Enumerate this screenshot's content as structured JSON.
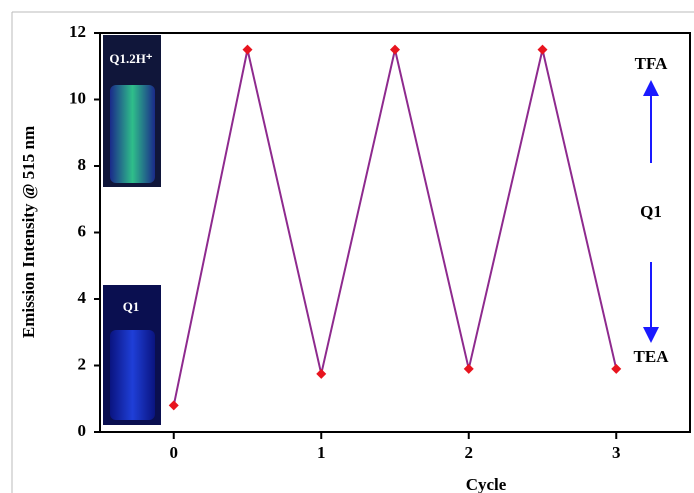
{
  "chart_data": {
    "type": "line",
    "x": [
      0,
      0.5,
      1,
      1.5,
      2,
      2.5,
      3
    ],
    "values": [
      0.8,
      11.5,
      1.75,
      11.5,
      1.9,
      11.5,
      1.9
    ],
    "color": "#8e2a8e",
    "marker_color": "#e8141e",
    "xlim": [
      -0.5,
      3.5
    ],
    "xticks": [
      0,
      1,
      2,
      3
    ],
    "ylim": [
      0,
      12
    ],
    "yticks": [
      0,
      2,
      4,
      6,
      8,
      10,
      12
    ],
    "xlabel": "Cycle",
    "ylabel": "Emission Intensity @ 515 nm",
    "annotations": [
      "TFA",
      "Q1",
      "TEA"
    ],
    "inset_labels": [
      "Q1.2H⁺",
      "Q1"
    ]
  }
}
